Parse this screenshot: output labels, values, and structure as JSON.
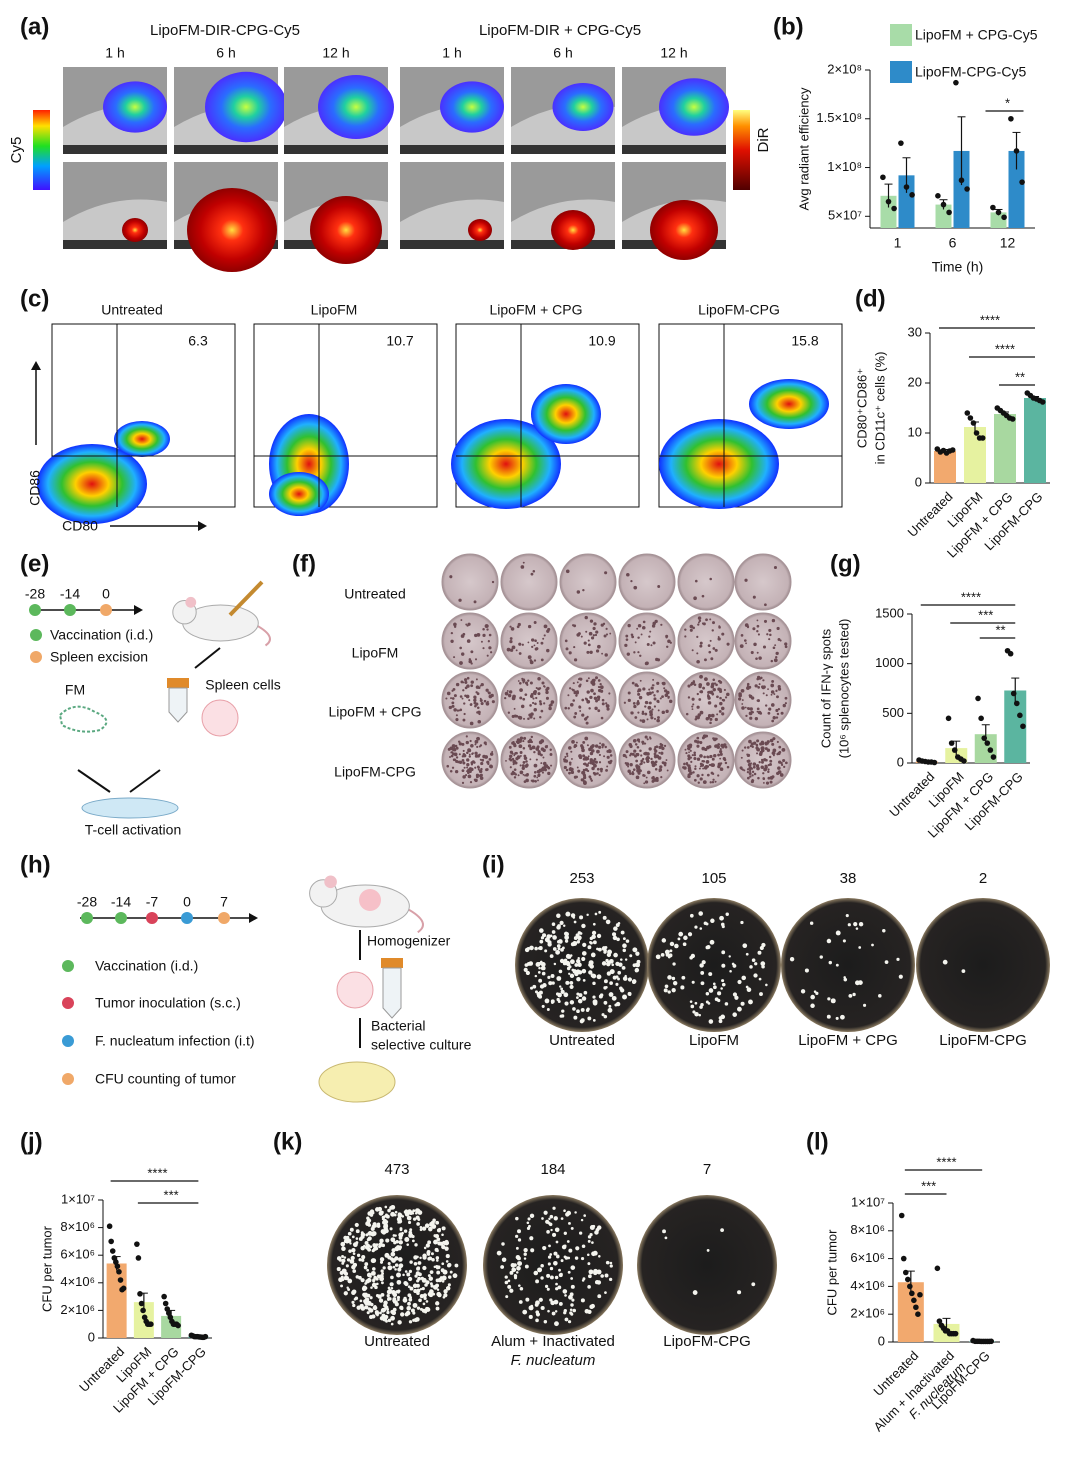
{
  "imaging": {
    "label": "(a)",
    "groups": [
      {
        "title": "LipoFM-DIR-CPG-Cy5",
        "times": [
          "1 h",
          "6 h",
          "12 h"
        ]
      },
      {
        "title": "LipoFM-DIR + CPG-Cy5",
        "times": [
          "1 h",
          "6 h",
          "12 h"
        ]
      }
    ],
    "colorbars": [
      "Cy5",
      "DiR"
    ]
  },
  "chart_data": [
    {
      "type": "bar",
      "label": "(b)",
      "ylabel": "Avg radiant efficiency",
      "xlabel": "Time (h)",
      "categories": [
        "1",
        "6",
        "12"
      ],
      "series": [
        {
          "name": "LipoFM + CPG-Cy5",
          "color": "#a8dca8",
          "values": [
            71000000,
            62000000,
            54000000
          ],
          "errors": [
            12000000,
            5000000,
            3000000
          ],
          "points": [
            [
              90000000,
              65000000,
              58000000
            ],
            [
              71000000,
              62000000,
              54000000
            ],
            [
              59000000,
              54000000,
              49000000
            ]
          ]
        },
        {
          "name": "LipoFM-CPG-Cy5",
          "color": "#2e8bc9",
          "values": [
            92000000,
            117000000,
            117000000
          ],
          "errors": [
            18000000,
            35000000,
            19000000
          ],
          "points": [
            [
              125000000,
              80000000,
              72000000
            ],
            [
              187000000,
              87000000,
              78000000
            ],
            [
              150000000,
              117000000,
              85000000
            ]
          ]
        }
      ],
      "ylim": [
        38000000,
        200000000
      ],
      "yticks": [
        {
          "value": 50000000,
          "label": "5×10⁷"
        },
        {
          "value": 100000000,
          "label": "1×10⁸"
        },
        {
          "value": 150000000,
          "label": "1.5×10⁸"
        },
        {
          "value": 200000000,
          "label": "2×10⁸"
        }
      ],
      "annotations": [
        {
          "text": "*",
          "from": "12",
          "to": "12"
        }
      ]
    },
    {
      "type": "bar",
      "label": "(d)",
      "ylabel": [
        "CD80⁺CD86⁺",
        "in CD11c⁺ cells (%)"
      ],
      "categories": [
        "Untreated",
        "LipoFM",
        "LipoFM + CPG",
        "LipoFM-CPG"
      ],
      "values": [
        6.4,
        11.2,
        13.8,
        17.0
      ],
      "errors": [
        0.3,
        1.0,
        0.4,
        0.3
      ],
      "colors": [
        "#f2a96e",
        "#e6f2a0",
        "#a8d8a0",
        "#5bb5a0"
      ],
      "points": [
        [
          6.8,
          6.2,
          6.5,
          6.0,
          6.4,
          6.6
        ],
        [
          14,
          13,
          12,
          10,
          9,
          9
        ],
        [
          15,
          14.5,
          14,
          13.5,
          13,
          12.8
        ],
        [
          18,
          17.5,
          17,
          16.8,
          16.5,
          16.2
        ]
      ],
      "ylim": [
        0,
        30
      ],
      "yticks": [
        0,
        10,
        20,
        30
      ],
      "annotations": [
        {
          "text": "****",
          "from": "Untreated",
          "to": "LipoFM-CPG"
        },
        {
          "text": "****",
          "from": "LipoFM",
          "to": "LipoFM-CPG"
        },
        {
          "text": "**",
          "from": "LipoFM + CPG",
          "to": "LipoFM-CPG"
        }
      ]
    },
    {
      "type": "bar",
      "label": "(g)",
      "ylabel": [
        "Count of IFN-γ spots",
        "(10⁶ splenocytes tested)"
      ],
      "categories": [
        "Untreated",
        "LipoFM",
        "LipoFM + CPG",
        "LipoFM-CPG"
      ],
      "values": [
        15,
        150,
        290,
        730
      ],
      "errors": [
        5,
        70,
        95,
        125
      ],
      "colors": [
        "#f2a96e",
        "#e6f2a0",
        "#a8d8a0",
        "#5bb5a0"
      ],
      "points": [
        [
          30,
          20,
          15,
          10,
          10,
          5
        ],
        [
          450,
          200,
          130,
          60,
          40,
          20
        ],
        [
          650,
          450,
          250,
          200,
          130,
          60
        ],
        [
          1130,
          1100,
          700,
          600,
          480,
          370
        ]
      ],
      "ylim": [
        0,
        1500
      ],
      "yticks": [
        0,
        500,
        1000,
        1500
      ],
      "annotations": [
        {
          "text": "****",
          "from": "Untreated",
          "to": "LipoFM-CPG"
        },
        {
          "text": "***",
          "from": "LipoFM",
          "to": "LipoFM-CPG"
        },
        {
          "text": "**",
          "from": "LipoFM + CPG",
          "to": "LipoFM-CPG"
        }
      ]
    },
    {
      "type": "bar",
      "label": "(j)",
      "ylabel": "CFU per tumor",
      "categories": [
        "Untreated",
        "LipoFM",
        "LipoFM + CPG",
        "LipoFM-CPG"
      ],
      "values": [
        5400000,
        2600000,
        1600000,
        100000
      ],
      "errors": [
        500000,
        650000,
        400000,
        20000
      ],
      "colors": [
        "#f2a96e",
        "#e6f2a0",
        "#a8d8a0",
        "#5bb5a0"
      ],
      "points": [
        [
          8100000,
          7000000,
          6300000,
          5800000,
          5500000,
          5200000,
          4800000,
          4200000,
          3500000,
          3600000
        ],
        [
          6800000,
          5800000,
          3200000,
          2500000,
          2000000,
          1500000,
          1200000,
          1000000,
          1000000,
          1000000
        ],
        [
          3000000,
          2500000,
          2100000,
          1800000,
          1500000,
          1200000,
          1000000,
          1000000,
          1000000,
          900000
        ],
        [
          200000,
          150000,
          100000,
          100000,
          100000,
          80000,
          70000,
          50000,
          50000,
          100000
        ]
      ],
      "ylim": [
        0,
        10000000
      ],
      "yticks": [
        0,
        {
          "value": 2000000,
          "label": "2×10⁶"
        },
        {
          "value": 4000000,
          "label": "4×10⁶"
        },
        {
          "value": 6000000,
          "label": "6×10⁶"
        },
        {
          "value": 8000000,
          "label": "8×10⁶"
        },
        {
          "value": 10000000,
          "label": "1×10⁷"
        }
      ],
      "annotations": [
        {
          "text": "****",
          "from": "Untreated",
          "to": "LipoFM-CPG"
        },
        {
          "text": "***",
          "from": "LipoFM",
          "to": "LipoFM-CPG"
        }
      ]
    },
    {
      "type": "bar",
      "label": "(l)",
      "ylabel": "CFU per tumor",
      "categories": [
        "Untreated",
        [
          "Alum + Inactivated",
          "F. nucleatum"
        ],
        "LipoFM-CPG"
      ],
      "values": [
        4300000,
        1300000,
        50000
      ],
      "errors": [
        800000,
        400000,
        20000
      ],
      "colors": [
        "#f2a96e",
        "#e6f2a0",
        "#5bb5a0"
      ],
      "points": [
        [
          9100000,
          6000000,
          5000000,
          4500000,
          4000000,
          3500000,
          3000000,
          2500000,
          2000000,
          3400000
        ],
        [
          5300000,
          1500000,
          1200000,
          1000000,
          800000,
          800000,
          600000,
          600000,
          600000,
          600000
        ],
        [
          100000,
          50000,
          50000,
          50000,
          40000,
          40000,
          40000,
          40000,
          40000,
          50000
        ]
      ],
      "ylim": [
        0,
        10000000
      ],
      "yticks": [
        0,
        {
          "value": 2000000,
          "label": "2×10⁶"
        },
        {
          "value": 4000000,
          "label": "4×10⁶"
        },
        {
          "value": 6000000,
          "label": "6×10⁶"
        },
        {
          "value": 8000000,
          "label": "8×10⁶"
        },
        {
          "value": 10000000,
          "label": "1×10⁷"
        }
      ],
      "annotations": [
        {
          "text": "****",
          "from": "Untreated",
          "to": "LipoFM-CPG"
        },
        {
          "text": "***",
          "from": "Untreated",
          "to": [
            "Alum + Inactivated",
            "F. nucleatum"
          ]
        }
      ]
    }
  ],
  "flow": {
    "label": "(c)",
    "ylabel": "CD86",
    "xlabel": "CD80",
    "plots": [
      {
        "title": "Untreated",
        "value": 6.3
      },
      {
        "title": "LipoFM",
        "value": 10.7
      },
      {
        "title": "LipoFM  + CPG",
        "value": 10.9
      },
      {
        "title": "LipoFM-CPG",
        "value": 15.8
      }
    ]
  },
  "schematic_e": {
    "label": "(e)",
    "timeline": [
      {
        "day": -28,
        "color": "#5cb85c"
      },
      {
        "day": -14,
        "color": "#5cb85c"
      },
      {
        "day": 0,
        "color": "#f0a868"
      }
    ],
    "legend": [
      {
        "text": "Vaccination (i.d.)",
        "color": "#5cb85c"
      },
      {
        "text": "Spleen excision",
        "color": "#f0a868"
      }
    ],
    "fm": "FM",
    "spleen": "Spleen cells",
    "result": "T-cell activation"
  },
  "elispot": {
    "label": "(f)",
    "rows": [
      "Untreated",
      "LipoFM",
      "LipoFM  + CPG",
      "LipoFM-CPG"
    ]
  },
  "schematic_h": {
    "label": "(h)",
    "timeline": [
      {
        "day": -28,
        "color": "#5cb85c"
      },
      {
        "day": -14,
        "color": "#5cb85c"
      },
      {
        "day": -7,
        "color": "#d9435a"
      },
      {
        "day": 0,
        "color": "#3a9bd5"
      },
      {
        "day": 7,
        "color": "#f0a868"
      }
    ],
    "legend": [
      {
        "text": "Vaccination (i.d.)",
        "color": "#5cb85c"
      },
      {
        "text": "Tumor inoculation (s.c.)",
        "color": "#d9435a"
      },
      {
        "text": "F. nucleatum infection (i.t)",
        "color": "#3a9bd5"
      },
      {
        "text": "CFU counting of tumor",
        "color": "#f0a868"
      }
    ],
    "steps": [
      "Homogenizer",
      [
        "Bacterial",
        "selective culture"
      ]
    ]
  },
  "plates_i": {
    "label": "(i)",
    "plates": [
      {
        "count": 253,
        "name": "Untreated"
      },
      {
        "count": 105,
        "name": "LipoFM"
      },
      {
        "count": 38,
        "name": "LipoFM  + CPG"
      },
      {
        "count": 2,
        "name": "LipoFM-CPG"
      }
    ]
  },
  "plates_k": {
    "label": "(k)",
    "plates": [
      {
        "count": 473,
        "name": "Untreated"
      },
      {
        "count": 184,
        "name": [
          "Alum + Inactivated",
          "F. nucleatum"
        ]
      },
      {
        "count": 7,
        "name": "LipoFM-CPG"
      }
    ]
  }
}
